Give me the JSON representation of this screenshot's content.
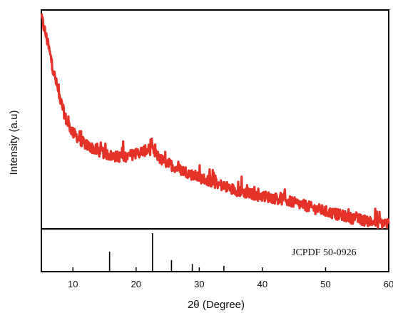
{
  "chart_data": {
    "type": "line",
    "xlabel": "2θ (Degree)",
    "ylabel": "Intensity (a.u)",
    "xlim": [
      5,
      60
    ],
    "x_ticks": [
      10,
      20,
      30,
      40,
      50,
      60
    ],
    "grid": false,
    "series": [
      {
        "color": "#e53228",
        "x": [
          5,
          6,
          7,
          8,
          9,
          10,
          11,
          12,
          13,
          14,
          15,
          16,
          17,
          18,
          19,
          20,
          21,
          22,
          22.5,
          23,
          24,
          25,
          26,
          27,
          28,
          29,
          30,
          31,
          32,
          33,
          34,
          35,
          36,
          37,
          38,
          39,
          40,
          41,
          42,
          43,
          44,
          45,
          46,
          47,
          48,
          49,
          50,
          51,
          52,
          53,
          54,
          55,
          56,
          57,
          58,
          59,
          60
        ],
        "y": [
          0.97,
          0.85,
          0.71,
          0.59,
          0.49,
          0.44,
          0.41,
          0.385,
          0.37,
          0.355,
          0.345,
          0.335,
          0.33,
          0.33,
          0.335,
          0.345,
          0.355,
          0.36,
          0.365,
          0.345,
          0.315,
          0.3,
          0.285,
          0.27,
          0.26,
          0.245,
          0.235,
          0.225,
          0.215,
          0.205,
          0.195,
          0.185,
          0.175,
          0.168,
          0.16,
          0.155,
          0.15,
          0.145,
          0.14,
          0.135,
          0.128,
          0.12,
          0.112,
          0.105,
          0.095,
          0.088,
          0.08,
          0.072,
          0.065,
          0.058,
          0.05,
          0.045,
          0.04,
          0.035,
          0.03,
          0.027,
          0.025
        ]
      }
    ],
    "reference": {
      "label": "JCPDF 50-0926",
      "peaks_x": [
        15.8,
        22.6,
        25.6,
        28.9,
        33.9
      ],
      "peaks_height": [
        0.52,
        1.0,
        0.3,
        0.2,
        0.15
      ]
    }
  }
}
